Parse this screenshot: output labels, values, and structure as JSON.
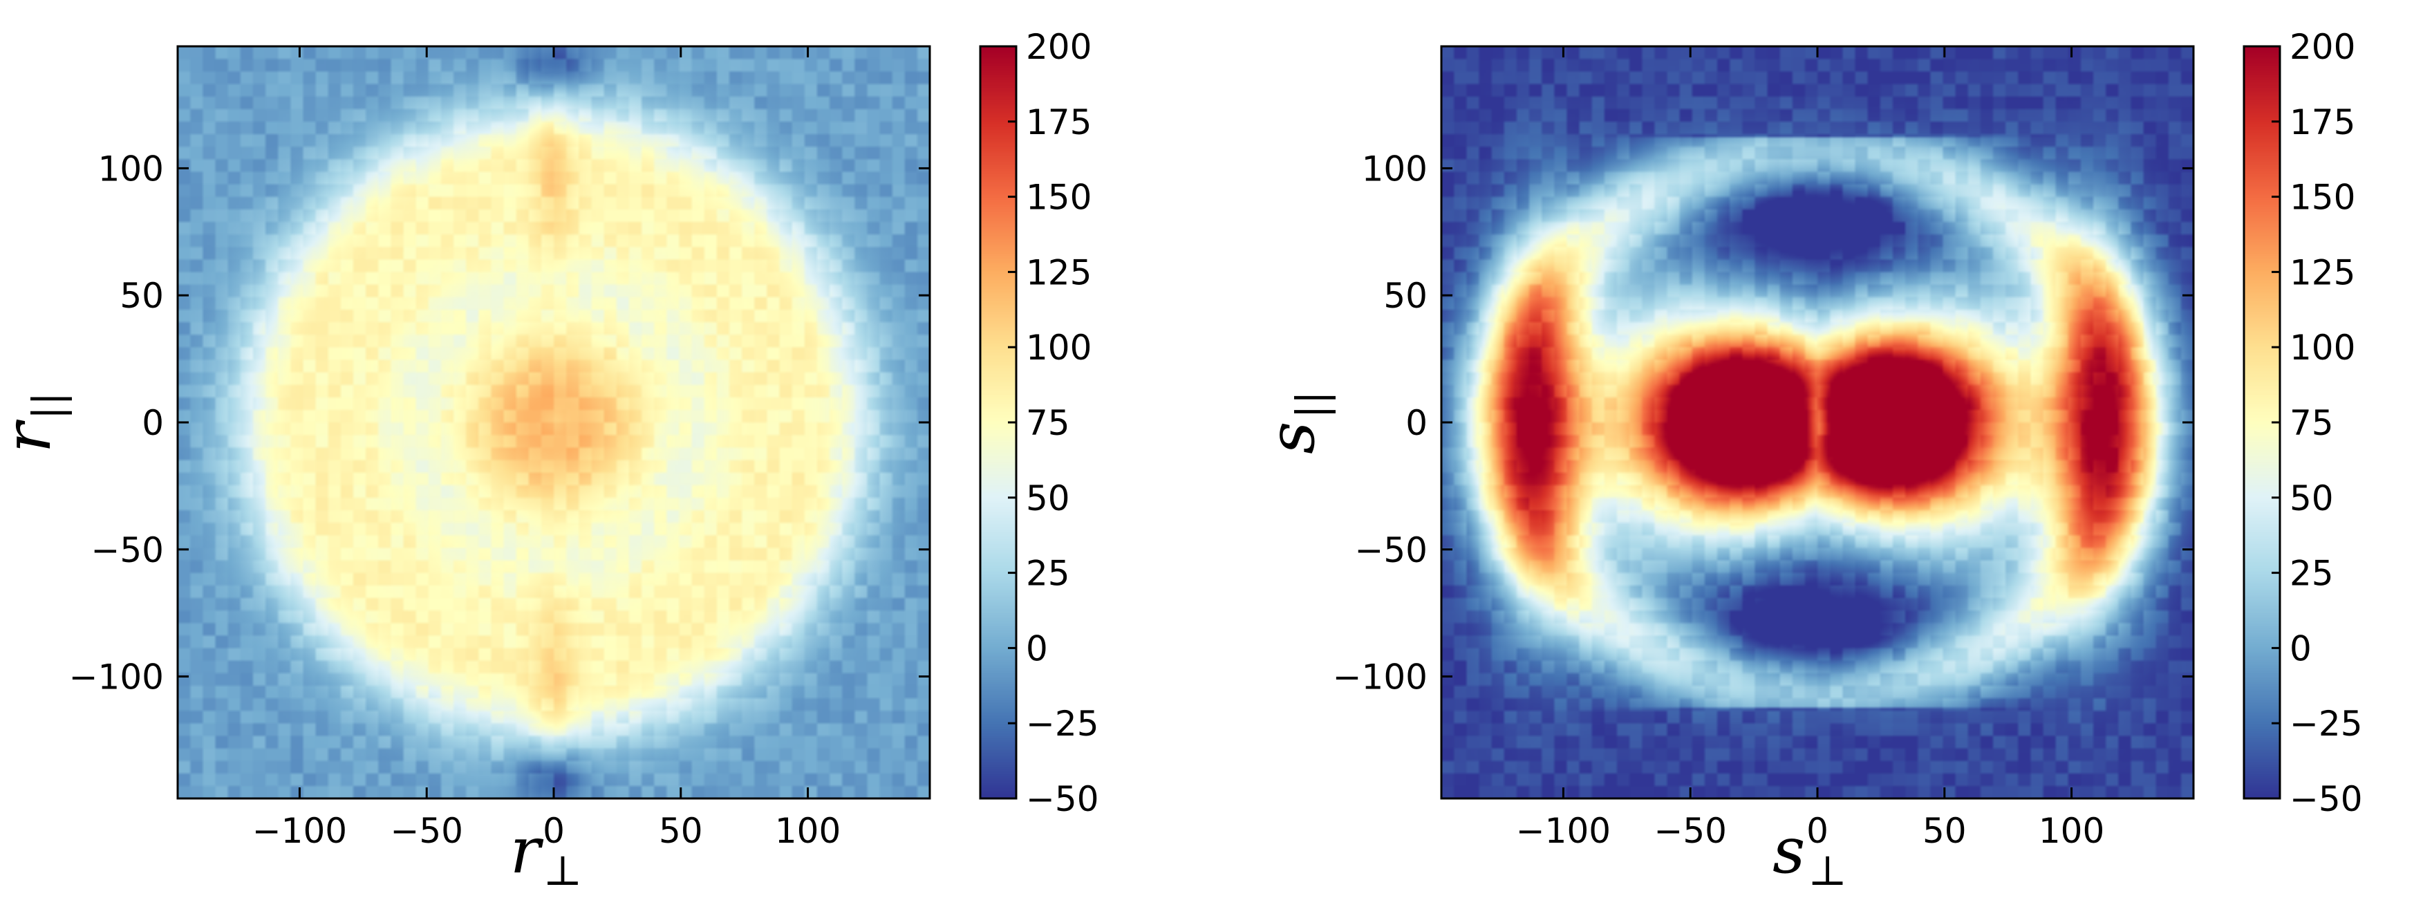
{
  "chart_data": [
    {
      "type": "heatmap",
      "title": "",
      "xlabel": "r",
      "xlabel_subscript": "⊥",
      "ylabel": "r",
      "ylabel_subscript": "||",
      "xlim": [
        -148,
        148
      ],
      "ylim": [
        -148,
        148
      ],
      "xticks": [
        -100,
        -50,
        0,
        50,
        100
      ],
      "yticks": [
        -100,
        -50,
        0,
        50,
        100
      ],
      "xtick_labels": [
        "−100",
        "−50",
        "0",
        "50",
        "100"
      ],
      "ytick_labels": [
        "−100",
        "−50",
        "0",
        "50",
        "100"
      ],
      "grid": false,
      "colorbar": {
        "range": [
          -50,
          200
        ],
        "ticks": [
          200,
          175,
          150,
          125,
          100,
          75,
          50,
          25,
          0,
          -25,
          -50
        ],
        "tick_labels": [
          "200",
          "175",
          "150",
          "125",
          "100",
          "75",
          "50",
          "25",
          "0",
          "−25",
          "−50"
        ],
        "colormap": "RdYlBu_r"
      },
      "pattern": "isotropic",
      "description_values": {
        "center_peak": 145,
        "inner_ring_trough_radius": 75,
        "inner_ring_trough_value": 38,
        "bao_ring_radius": 108,
        "bao_ring_value": 62,
        "background_value": -5
      }
    },
    {
      "type": "heatmap",
      "title": "",
      "xlabel": "s",
      "xlabel_subscript": "⊥",
      "ylabel": "s",
      "ylabel_subscript": "||",
      "xlim": [
        -148,
        148
      ],
      "ylim": [
        -148,
        148
      ],
      "xticks": [
        -100,
        -50,
        0,
        50,
        100
      ],
      "yticks": [
        -100,
        -50,
        0,
        50,
        100
      ],
      "xtick_labels": [
        "−100",
        "−50",
        "0",
        "50",
        "100"
      ],
      "ytick_labels": [
        "−100",
        "−50",
        "0",
        "50",
        "100"
      ],
      "grid": false,
      "colorbar": {
        "range": [
          -50,
          200
        ],
        "ticks": [
          200,
          175,
          150,
          125,
          100,
          75,
          50,
          25,
          0,
          -25,
          -50
        ],
        "tick_labels": [
          "200",
          "175",
          "150",
          "125",
          "100",
          "75",
          "50",
          "25",
          "0",
          "−25",
          "−50"
        ],
        "colormap": "RdYlBu_r"
      },
      "pattern": "redshift-space-distorted",
      "description_values": {
        "lobe_peak_x": 28,
        "lobe_peak_value": 200,
        "side_band_x": 110,
        "side_band_value": 120,
        "background_value": -45
      }
    }
  ],
  "colors": {
    "colormap_stops": [
      "#313695",
      "#4575b4",
      "#74add1",
      "#abd9e9",
      "#e0f3f8",
      "#ffffbf",
      "#fee090",
      "#fdae61",
      "#f46d43",
      "#d73027",
      "#a50026"
    ]
  }
}
